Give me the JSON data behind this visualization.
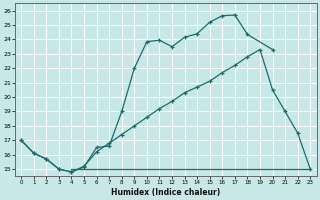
{
  "xlabel": "Humidex (Indice chaleur)",
  "background_color": "#c8e8e8",
  "grid_color": "#b0d4d4",
  "line_color": "#1a6b6b",
  "xlim": [
    -0.5,
    23.5
  ],
  "ylim": [
    14.5,
    26.5
  ],
  "xticks": [
    0,
    1,
    2,
    3,
    4,
    5,
    6,
    7,
    8,
    9,
    10,
    11,
    12,
    13,
    14,
    15,
    16,
    17,
    18,
    19,
    20,
    21,
    22,
    23
  ],
  "yticks": [
    15,
    16,
    17,
    18,
    19,
    20,
    21,
    22,
    23,
    24,
    25,
    26
  ],
  "curve1_x": [
    0,
    1,
    2,
    3,
    4,
    5,
    6,
    7,
    8,
    9,
    10,
    11,
    12,
    13,
    14,
    15,
    16,
    17,
    18,
    20
  ],
  "curve1_y": [
    17.0,
    16.1,
    15.7,
    15.0,
    14.8,
    15.15,
    16.5,
    16.6,
    19.0,
    22.0,
    23.85,
    23.95,
    23.5,
    24.15,
    24.4,
    25.2,
    25.65,
    25.7,
    24.35,
    23.3
  ],
  "curve2_x": [
    0,
    1,
    2,
    3,
    4,
    5,
    6,
    7,
    8,
    9,
    10,
    11,
    12,
    13,
    14,
    15,
    16,
    17,
    18,
    19,
    20,
    21,
    22,
    23
  ],
  "curve2_y": [
    17.0,
    16.1,
    15.7,
    15.0,
    14.8,
    15.2,
    16.2,
    16.8,
    17.4,
    18.0,
    18.6,
    19.2,
    19.7,
    20.3,
    20.7,
    21.1,
    21.7,
    22.2,
    22.8,
    23.3,
    20.5,
    19.0,
    17.5,
    15.0
  ],
  "curve3_x": [
    4,
    23
  ],
  "curve3_y": [
    15.0,
    15.0
  ]
}
